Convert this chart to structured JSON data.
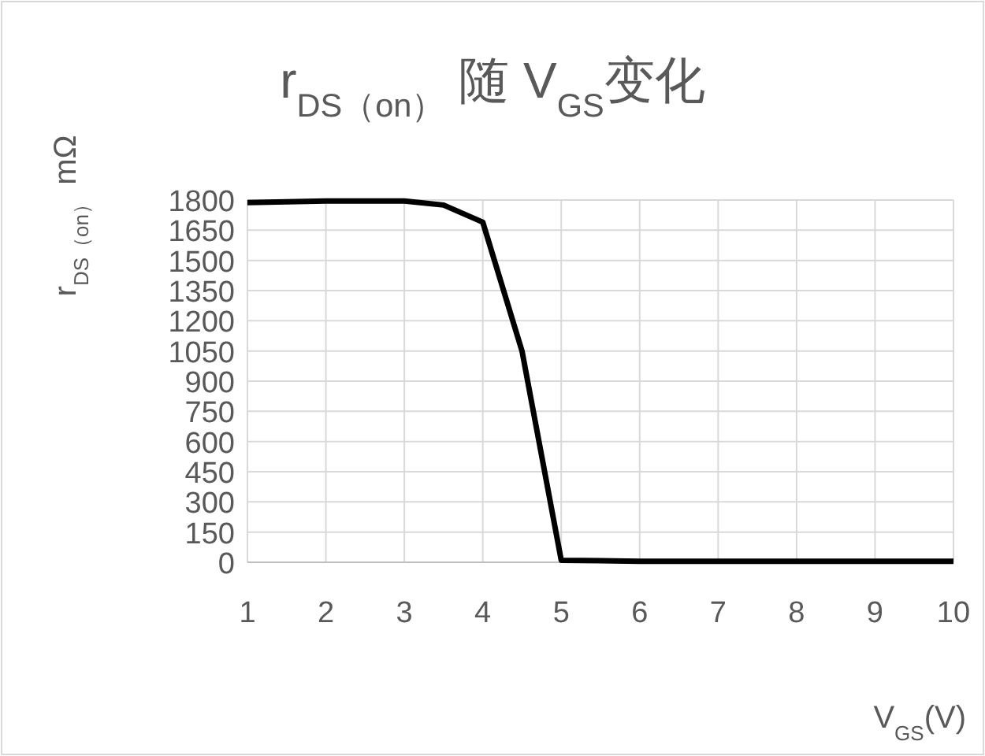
{
  "chart_data": {
    "type": "line",
    "title": "r$_{DS（on）}$ 随 V$_{GS}$变化",
    "xlabel": "V$_{GS}$(V)",
    "ylabel": "r$_{DS（on）}$ mΩ",
    "x": [
      1,
      2,
      3,
      3.5,
      4,
      4.5,
      5,
      6,
      7,
      8,
      9,
      10
    ],
    "series": [
      {
        "color": "#000000",
        "values": [
          1787,
          1795,
          1795,
          1775,
          1690,
          1050,
          10,
          5,
          5,
          5,
          5,
          5
        ]
      }
    ],
    "xlim": [
      1,
      10
    ],
    "xticks": [
      1,
      2,
      3,
      4,
      5,
      6,
      7,
      8,
      9,
      10
    ],
    "ylim": [
      0,
      1800
    ],
    "yticks": [
      0,
      150,
      300,
      450,
      600,
      750,
      900,
      1050,
      1200,
      1350,
      1500,
      1650,
      1800
    ],
    "grid": true,
    "marker": "none",
    "line_style": "solid"
  }
}
